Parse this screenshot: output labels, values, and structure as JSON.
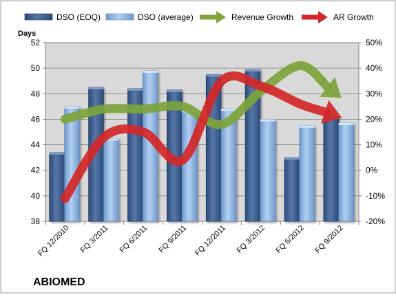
{
  "chart_data": {
    "type": "bar",
    "categories": [
      "FQ 12/2010",
      "FQ 3/2011",
      "FQ 6/2011",
      "FQ 9/2011",
      "FQ 12/2011",
      "FQ 3/2012",
      "FQ 6/2012",
      "FQ 9/2012"
    ],
    "series": [
      {
        "name": "DSO (EOQ)",
        "values": [
          43.4,
          48.5,
          48.4,
          48.3,
          49.5,
          49.9,
          43.0,
          46.2
        ],
        "color": "#3f5f8f",
        "axis": "left",
        "kind": "bar"
      },
      {
        "name": "DSO (average)",
        "values": [
          47.0,
          44.5,
          49.8,
          46.7,
          46.8,
          46.0,
          45.5,
          45.7
        ],
        "color": "#8eb5e5",
        "axis": "left",
        "kind": "bar"
      },
      {
        "name": "Revenue Growth",
        "values": [
          20,
          24,
          24,
          25,
          18,
          31,
          41,
          29
        ],
        "color": "#7da43b",
        "axis": "right",
        "kind": "arrow-line"
      },
      {
        "name": "AR Growth",
        "values": [
          -11,
          13,
          15,
          4,
          35,
          33,
          26,
          21
        ],
        "color": "#d42727",
        "axis": "right",
        "kind": "arrow-line"
      }
    ],
    "y_left": {
      "label": "Days",
      "min": 38,
      "max": 52,
      "ticks": [
        "38",
        "40",
        "42",
        "44",
        "46",
        "48",
        "50",
        "52"
      ]
    },
    "y_right": {
      "min": -20,
      "max": 50,
      "ticks": [
        "-20%",
        "-10%",
        "0%",
        "10%",
        "20%",
        "30%",
        "40%",
        "50%"
      ]
    },
    "grid": true,
    "legend_position": "top",
    "title": "",
    "plot_background": "#d9d9d9",
    "company": "ABIOMED"
  }
}
